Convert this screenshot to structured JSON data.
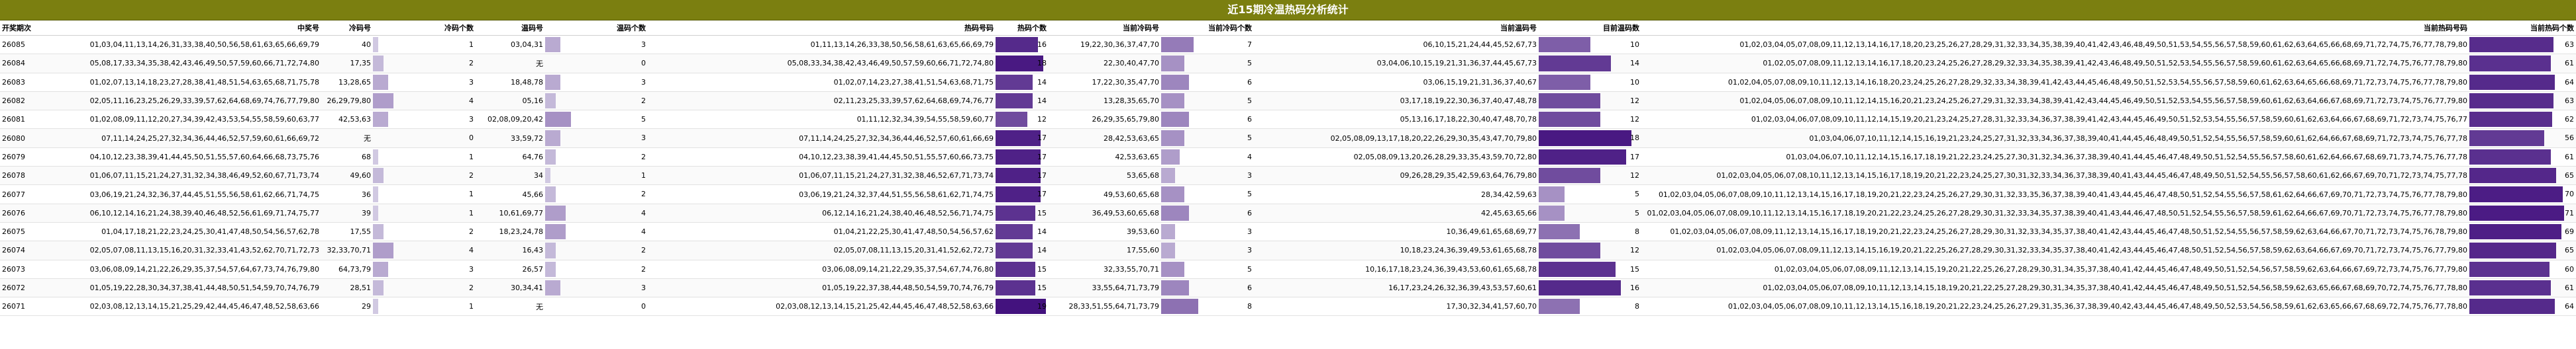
{
  "title": "近15期冷温热码分析统计",
  "columns": {
    "period": "开奖期次",
    "mid": "中奖号",
    "cold_nums": "冷码号",
    "cold_count": "冷码个数",
    "warm_nums": "温码号",
    "warm_count": "温码个数",
    "hot_nums": "热码号码",
    "hot_count": "热码个数",
    "cur_cold_nums": "当前冷码号",
    "cur_cold_count": "当前冷码个数",
    "cur_warm_nums": "当前温码号",
    "cur_warm_count": "目前温码数",
    "cur_hot_nums": "当前热码号码",
    "cur_hot_count": "当前热码个数"
  },
  "colors": {
    "title_bg": "#7b7f10",
    "bar_dark": "#3d0a7a",
    "bar_light": "#e6e4f1"
  },
  "rows": [
    {
      "period": "26085",
      "mid": "01,03,04,11,13,14,26,31,33,38,40,50,56,58,61,63,65,66,69,79",
      "cold_nums": "40",
      "cold_count": 1,
      "warm_nums": "03,04,31",
      "warm_count": 3,
      "hot_nums": "01,11,13,14,26,33,38,50,56,58,61,63,65,66,69,79",
      "hot_count": 16,
      "cur_cold_nums": "19,22,30,36,37,47,70",
      "cur_cold_count": 7,
      "cur_warm_nums": "06,10,15,21,24,44,45,52,67,73",
      "cur_warm_count": 10,
      "cur_hot_nums": "01,02,03,04,05,07,08,09,11,12,13,14,16,17,18,20,23,25,26,27,28,29,31,32,33,34,35,38,39,40,41,42,43,46,48,49,50,51,53,54,55,56,57,58,59,60,61,62,63,64,65,66,68,69,71,72,74,75,76,77,78,79,80",
      "cur_hot_count": 63
    },
    {
      "period": "26084",
      "mid": "05,08,17,33,34,35,38,42,43,46,49,50,57,59,60,66,71,72,74,80",
      "cold_nums": "17,35",
      "cold_count": 2,
      "warm_nums": "无",
      "warm_count": 0,
      "hot_nums": "05,08,33,34,38,42,43,46,49,50,57,59,60,66,71,72,74,80",
      "hot_count": 18,
      "cur_cold_nums": "22,30,40,47,70",
      "cur_cold_count": 5,
      "cur_warm_nums": "03,04,06,10,15,19,21,31,36,37,44,45,67,73",
      "cur_warm_count": 14,
      "cur_hot_nums": "01,02,05,07,08,09,11,12,13,14,16,17,18,20,23,24,25,26,27,28,29,32,33,34,35,38,39,41,42,43,46,48,49,50,51,52,53,54,55,56,57,58,59,60,61,62,63,64,65,66,68,69,71,72,74,75,76,77,78,79,80",
      "cur_hot_count": 61
    },
    {
      "period": "26083",
      "mid": "01,02,07,13,14,18,23,27,28,38,41,48,51,54,63,65,68,71,75,78",
      "cold_nums": "13,28,65",
      "cold_count": 3,
      "warm_nums": "18,48,78",
      "warm_count": 3,
      "hot_nums": "01,02,07,14,23,27,38,41,51,54,63,68,71,75",
      "hot_count": 14,
      "cur_cold_nums": "17,22,30,35,47,70",
      "cur_cold_count": 6,
      "cur_warm_nums": "03,06,15,19,21,31,36,37,40,67",
      "cur_warm_count": 10,
      "cur_hot_nums": "01,02,04,05,07,08,09,10,11,12,13,14,16,18,20,23,24,25,26,27,28,29,32,33,34,38,39,41,42,43,44,45,46,48,49,50,51,52,53,54,55,56,57,58,59,60,61,62,63,64,65,66,68,69,71,72,73,74,75,76,77,78,79,80",
      "cur_hot_count": 64
    },
    {
      "period": "26082",
      "mid": "02,05,11,16,23,25,26,29,33,39,57,62,64,68,69,74,76,77,79,80",
      "cold_nums": "26,29,79,80",
      "cold_count": 4,
      "warm_nums": "05,16",
      "warm_count": 2,
      "hot_nums": "02,11,23,25,33,39,57,62,64,68,69,74,76,77",
      "hot_count": 14,
      "cur_cold_nums": "13,28,35,65,70",
      "cur_cold_count": 5,
      "cur_warm_nums": "03,17,18,19,22,30,36,37,40,47,48,78",
      "cur_warm_count": 12,
      "cur_hot_nums": "01,02,04,05,06,07,08,09,10,11,12,14,15,16,20,21,23,24,25,26,27,29,31,32,33,34,38,39,41,42,43,44,45,46,49,50,51,52,53,54,55,56,57,58,59,60,61,62,63,64,66,67,68,69,71,72,73,74,75,76,77,79,80",
      "cur_hot_count": 63
    },
    {
      "period": "26081",
      "mid": "01,02,08,09,11,12,20,27,34,39,42,43,53,54,55,58,59,60,63,77",
      "cold_nums": "42,53,63",
      "cold_count": 3,
      "warm_nums": "02,08,09,20,42",
      "warm_count": 5,
      "hot_nums": "01,11,12,32,34,39,54,55,58,59,60,77",
      "hot_count": 12,
      "cur_cold_nums": "26,29,35,65,79,80",
      "cur_cold_count": 6,
      "cur_warm_nums": "05,13,16,17,18,22,30,40,47,48,70,78",
      "cur_warm_count": 12,
      "cur_hot_nums": "01,02,03,04,06,07,08,09,10,11,12,14,15,19,20,21,23,24,25,27,28,31,32,33,34,36,37,38,39,41,42,43,44,45,46,49,50,51,52,53,54,55,56,57,58,59,60,61,62,63,64,66,67,68,69,71,72,73,74,75,76,77",
      "cur_hot_count": 62
    },
    {
      "period": "26080",
      "mid": "07,11,14,24,25,27,32,34,36,44,46,52,57,59,60,61,66,69,72",
      "cold_nums": "无",
      "cold_count": 0,
      "warm_nums": "33,59,72",
      "warm_count": 3,
      "hot_nums": "07,11,14,24,25,27,32,34,36,44,46,52,57,60,61,66,69",
      "hot_count": 17,
      "cur_cold_nums": "28,42,53,63,65",
      "cur_cold_count": 5,
      "cur_warm_nums": "02,05,08,09,13,17,18,20,22,26,29,30,35,43,47,70,79,80",
      "cur_warm_count": 18,
      "cur_hot_nums": "01,03,04,06,07,10,11,12,14,15,16,19,21,23,24,25,27,31,32,33,34,36,37,38,39,40,41,44,45,46,48,49,50,51,52,54,55,56,57,58,59,60,61,62,64,66,67,68,69,71,72,73,74,75,76,77,78",
      "cur_hot_count": 56
    },
    {
      "period": "26079",
      "mid": "04,10,12,23,38,39,41,44,45,50,51,55,57,60,64,66,68,73,75,76",
      "cold_nums": "68",
      "cold_count": 1,
      "warm_nums": "64,76",
      "warm_count": 2,
      "hot_nums": "04,10,12,23,38,39,41,44,45,50,51,55,57,60,66,73,75",
      "hot_count": 17,
      "cur_cold_nums": "42,53,63,65",
      "cur_cold_count": 4,
      "cur_warm_nums": "02,05,08,09,13,20,26,28,29,33,35,43,59,70,72,80",
      "cur_warm_count": 17,
      "cur_hot_nums": "01,03,04,06,07,10,11,12,14,15,16,17,18,19,21,22,23,24,25,27,30,31,32,34,36,37,38,39,40,41,44,45,46,47,48,49,50,51,52,54,55,56,57,58,60,61,62,64,66,67,68,69,71,73,74,75,76,77,78",
      "cur_hot_count": 61
    },
    {
      "period": "26078",
      "mid": "01,06,07,11,15,21,24,27,31,32,34,38,46,49,52,60,67,71,73,74",
      "cold_nums": "49,60",
      "cold_count": 2,
      "warm_nums": "34",
      "warm_count": 1,
      "hot_nums": "01,06,07,11,15,21,24,27,31,32,38,46,52,67,71,73,74",
      "hot_count": 17,
      "cur_cold_nums": "53,65,68",
      "cur_cold_count": 3,
      "cur_warm_nums": "09,26,28,29,35,42,59,63,64,76,79,80",
      "cur_warm_count": 12,
      "cur_hot_nums": "01,02,03,04,05,06,07,08,10,11,12,13,14,15,16,17,18,19,20,21,22,23,24,25,27,30,31,32,33,34,36,37,38,39,40,41,43,44,45,46,47,48,49,50,51,52,54,55,56,57,58,60,61,62,66,67,69,70,71,72,73,74,75,77,78",
      "cur_hot_count": 65
    },
    {
      "period": "26077",
      "mid": "03,06,19,21,24,32,36,37,44,45,51,55,56,58,61,62,66,71,74,75",
      "cold_nums": "36",
      "cold_count": 1,
      "warm_nums": "45,66",
      "warm_count": 2,
      "hot_nums": "03,06,19,21,24,32,37,44,51,55,56,58,61,62,71,74,75",
      "hot_count": 17,
      "cur_cold_nums": "49,53,60,65,68",
      "cur_cold_count": 5,
      "cur_warm_nums": "28,34,42,59,63",
      "cur_warm_count": 5,
      "cur_hot_nums": "01,02,03,04,05,06,07,08,09,10,11,12,13,14,15,16,17,18,19,20,21,22,23,24,25,26,27,29,30,31,32,33,35,36,37,38,39,40,41,43,44,45,46,47,48,50,51,52,54,55,56,57,58,61,62,64,66,67,69,70,71,72,73,74,75,76,77,78,79,80",
      "cur_hot_count": 70
    },
    {
      "period": "26076",
      "mid": "06,10,12,14,16,21,24,38,39,40,46,48,52,56,61,69,71,74,75,77",
      "cold_nums": "39",
      "cold_count": 1,
      "warm_nums": "10,61,69,77",
      "warm_count": 4,
      "hot_nums": "06,12,14,16,21,24,38,40,46,48,52,56,71,74,75",
      "hot_count": 15,
      "cur_cold_nums": "36,49,53,60,65,68",
      "cur_cold_count": 6,
      "cur_warm_nums": "42,45,63,65,66",
      "cur_warm_count": 5,
      "cur_hot_nums": "01,02,03,04,05,06,07,08,09,10,11,12,13,14,15,16,17,18,19,20,21,22,23,24,25,26,27,28,29,30,31,32,33,34,35,37,38,39,40,41,43,44,46,47,48,50,51,52,54,55,56,57,58,59,61,62,64,66,67,69,70,71,72,73,74,75,76,77,78,79,80",
      "cur_hot_count": 71
    },
    {
      "period": "26075",
      "mid": "01,04,17,18,21,22,23,24,25,30,41,47,48,50,54,56,57,62,78",
      "cold_nums": "17,55",
      "cold_count": 2,
      "warm_nums": "18,23,24,78",
      "warm_count": 4,
      "hot_nums": "01,04,21,22,25,30,41,47,48,50,54,56,57,62",
      "hot_count": 14,
      "cur_cold_nums": "39,53,60",
      "cur_cold_count": 3,
      "cur_warm_nums": "10,36,49,61,65,68,69,77",
      "cur_warm_count": 8,
      "cur_hot_nums": "01,02,03,04,05,06,07,08,09,11,12,13,14,15,16,17,18,19,20,21,22,23,24,25,26,27,28,29,30,31,32,33,34,35,37,38,40,41,42,43,44,45,46,47,48,50,51,52,54,55,56,57,58,59,62,63,64,66,67,70,71,72,73,74,75,76,78,79,80",
      "cur_hot_count": 69
    },
    {
      "period": "26074",
      "mid": "02,05,07,08,11,13,15,16,20,31,32,33,41,43,52,62,70,71,72,73",
      "cold_nums": "32,33,70,71",
      "cold_count": 4,
      "warm_nums": "16,43",
      "warm_count": 2,
      "hot_nums": "02,05,07,08,11,13,15,20,31,41,52,62,72,73",
      "hot_count": 14,
      "cur_cold_nums": "17,55,60",
      "cur_cold_count": 3,
      "cur_warm_nums": "10,18,23,24,36,39,49,53,61,65,68,78",
      "cur_warm_count": 12,
      "cur_hot_nums": "01,02,03,04,05,06,07,08,09,11,12,13,14,15,16,19,20,21,22,25,26,27,28,29,30,31,32,33,34,35,37,38,40,41,42,43,44,45,46,47,48,50,51,52,54,56,57,58,59,62,63,64,66,67,69,70,71,72,73,74,75,76,77,79,80",
      "cur_hot_count": 65
    },
    {
      "period": "26073",
      "mid": "03,06,08,09,14,21,22,26,29,35,37,54,57,64,67,73,74,76,79,80",
      "cold_nums": "64,73,79",
      "cold_count": 3,
      "warm_nums": "26,57",
      "warm_count": 2,
      "hot_nums": "03,06,08,09,14,21,22,29,35,37,54,67,74,76,80",
      "hot_count": 15,
      "cur_cold_nums": "32,33,55,70,71",
      "cur_cold_count": 5,
      "cur_warm_nums": "10,16,17,18,23,24,36,39,43,53,60,61,65,68,78",
      "cur_warm_count": 15,
      "cur_hot_nums": "01,02,03,04,05,06,07,08,09,11,12,13,14,15,19,20,21,22,25,26,27,28,29,30,31,34,35,37,38,40,41,42,44,45,46,47,48,49,50,51,52,54,56,57,58,59,62,63,64,66,67,69,72,73,74,75,76,77,79,80",
      "cur_hot_count": 60
    },
    {
      "period": "26072",
      "mid": "01,05,19,22,28,30,34,37,38,41,44,48,50,51,54,59,70,74,76,79",
      "cold_nums": "28,51",
      "cold_count": 2,
      "warm_nums": "30,34,41",
      "warm_count": 3,
      "hot_nums": "01,05,19,22,37,38,44,48,50,54,59,70,74,76,79",
      "hot_count": 15,
      "cur_cold_nums": "33,55,64,71,73,79",
      "cur_cold_count": 6,
      "cur_warm_nums": "16,17,23,24,26,32,36,39,43,53,57,60,61",
      "cur_warm_count": 16,
      "cur_hot_nums": "01,02,03,04,05,06,07,08,09,10,11,12,13,14,15,18,19,20,21,22,25,27,28,29,30,31,34,35,37,38,40,41,42,44,45,46,47,48,49,50,51,52,54,56,58,59,62,63,65,66,67,68,69,70,72,74,75,76,77,78,80",
      "cur_hot_count": 61
    },
    {
      "period": "26071",
      "mid": "02,03,08,12,13,14,15,21,25,29,42,44,45,46,47,48,52,58,63,66",
      "cold_nums": "29",
      "cold_count": 1,
      "warm_nums": "无",
      "warm_count": 0,
      "hot_nums": "02,03,08,12,13,14,15,21,25,42,44,45,46,47,48,52,58,63,66",
      "hot_count": 19,
      "cur_cold_nums": "28,33,51,55,64,71,73,79",
      "cur_cold_count": 8,
      "cur_warm_nums": "17,30,32,34,41,57,60,70",
      "cur_warm_count": 8,
      "cur_hot_nums": "01,02,03,04,05,06,07,08,09,10,11,12,13,14,15,16,18,19,20,21,22,23,24,25,26,27,29,31,35,36,37,38,39,40,42,43,44,45,46,47,48,49,50,52,53,54,56,58,59,61,62,63,65,66,67,68,69,72,74,75,76,77,78,80",
      "cur_hot_count": 64
    }
  ]
}
